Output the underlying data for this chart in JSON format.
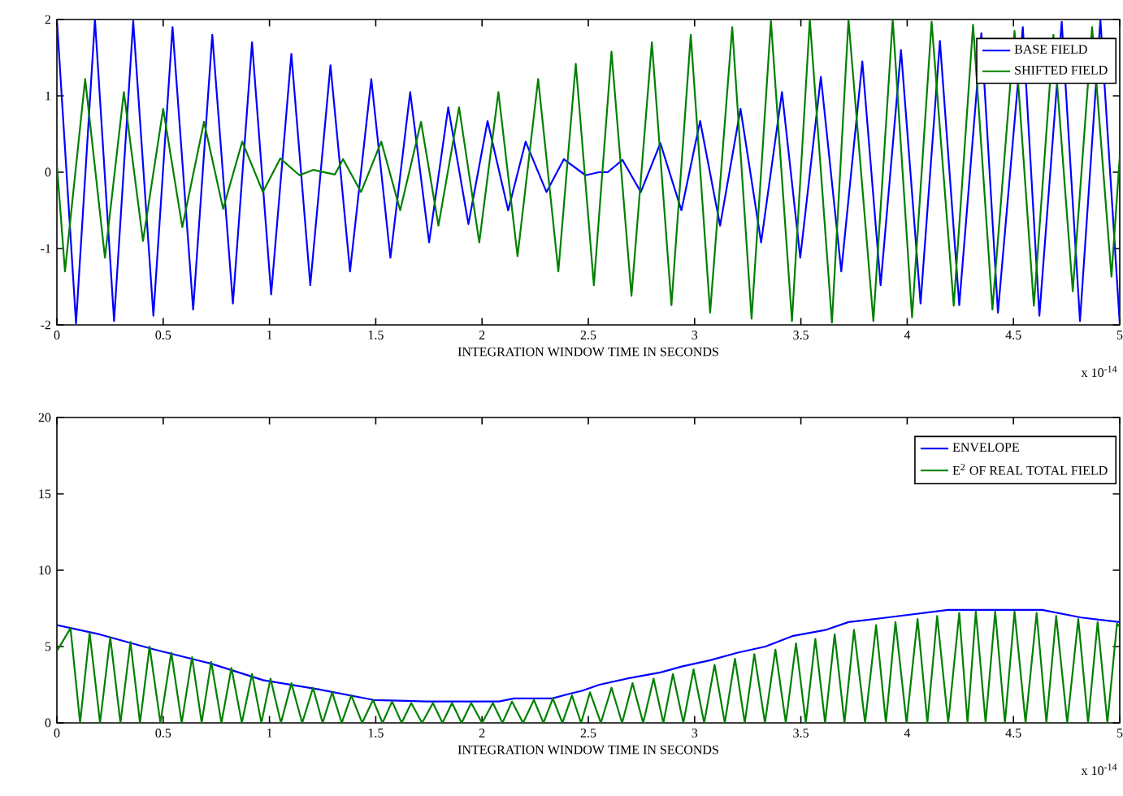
{
  "chart_data": [
    {
      "type": "line",
      "xlabel": "INTEGRATION WINDOW TIME IN SECONDS",
      "annotations": [
        "x 10$^{-14}$"
      ],
      "xlim": [
        0,
        5
      ],
      "ylim": [
        -2,
        2
      ],
      "xticks": [
        0,
        0.5,
        1,
        1.5,
        2,
        2.5,
        3,
        3.5,
        4,
        4.5,
        5
      ],
      "yticks": [
        -2,
        -1,
        0,
        1,
        2
      ],
      "legend": "top right",
      "grid": false,
      "series": [
        {
          "name": "BASE FIELD",
          "color": "#0000ff",
          "x": [
            0,
            0.09,
            0.179,
            0.269,
            0.359,
            0.454,
            0.544,
            0.641,
            0.731,
            0.828,
            0.918,
            1.008,
            1.103,
            1.192,
            1.287,
            1.379,
            1.479,
            1.569,
            1.662,
            1.751,
            1.841,
            1.936,
            2.026,
            2.123,
            2.205,
            2.303,
            2.385,
            2.487,
            2.55,
            2.591,
            2.661,
            2.747,
            2.839,
            2.938,
            3.026,
            3.12,
            3.216,
            3.313,
            3.411,
            3.497,
            3.594,
            3.69,
            3.789,
            3.875,
            3.971,
            4.063,
            4.154,
            4.245,
            4.349,
            4.427,
            4.544,
            4.622,
            4.727,
            4.813,
            4.909,
            5.0
          ],
          "values": [
            2.0,
            -1.98,
            2.0,
            -1.95,
            1.98,
            -1.88,
            1.9,
            -1.8,
            1.8,
            -1.72,
            1.7,
            -1.6,
            1.55,
            -1.48,
            1.4,
            -1.3,
            1.22,
            -1.12,
            1.05,
            -0.92,
            0.85,
            -0.68,
            0.67,
            -0.5,
            0.4,
            -0.26,
            0.17,
            -0.04,
            0.0,
            0.0,
            0.16,
            -0.26,
            0.38,
            -0.5,
            0.67,
            -0.7,
            0.83,
            -0.92,
            1.05,
            -1.12,
            1.25,
            -1.3,
            1.45,
            -1.48,
            1.6,
            -1.72,
            1.72,
            -1.74,
            1.82,
            -1.84,
            1.9,
            -1.88,
            1.97,
            -1.95,
            2.0,
            -1.98
          ]
        },
        {
          "name": "SHIFTED FIELD",
          "color": "#008000",
          "x": [
            0,
            0.038,
            0.133,
            0.226,
            0.315,
            0.405,
            0.5,
            0.59,
            0.692,
            0.782,
            0.872,
            0.969,
            1.051,
            1.141,
            1.205,
            1.308,
            1.346,
            1.431,
            1.526,
            1.615,
            1.713,
            1.795,
            1.892,
            1.987,
            2.077,
            2.167,
            2.264,
            2.359,
            2.441,
            2.526,
            2.609,
            2.703,
            2.799,
            2.891,
            2.982,
            3.073,
            3.177,
            3.268,
            3.359,
            3.458,
            3.542,
            3.646,
            3.724,
            3.841,
            3.932,
            4.023,
            4.115,
            4.219,
            4.31,
            4.401,
            4.505,
            4.596,
            4.688,
            4.779,
            4.87,
            4.961,
            5.0
          ],
          "values": [
            0.1,
            -1.3,
            1.22,
            -1.12,
            1.05,
            -0.9,
            0.83,
            -0.72,
            0.66,
            -0.48,
            0.4,
            -0.26,
            0.18,
            -0.04,
            0.03,
            -0.03,
            0.17,
            -0.26,
            0.4,
            -0.5,
            0.66,
            -0.7,
            0.85,
            -0.92,
            1.05,
            -1.1,
            1.22,
            -1.3,
            1.42,
            -1.48,
            1.58,
            -1.62,
            1.7,
            -1.74,
            1.8,
            -1.84,
            1.9,
            -1.92,
            1.98,
            -1.95,
            2.0,
            -1.97,
            2.0,
            -1.95,
            2.0,
            -1.9,
            1.97,
            -1.75,
            1.93,
            -1.8,
            1.85,
            -1.75,
            1.8,
            -1.56,
            1.9,
            -1.37,
            0.2
          ]
        }
      ]
    },
    {
      "type": "line",
      "xlabel": "INTEGRATION WINDOW TIME IN SECONDS",
      "annotations": [
        "x 10$^{-14}$"
      ],
      "xlim": [
        0,
        5
      ],
      "ylim": [
        0,
        20
      ],
      "xticks": [
        0,
        0.5,
        1,
        1.5,
        2,
        2.5,
        3,
        3.5,
        4,
        4.5,
        5
      ],
      "yticks": [
        0,
        5,
        10,
        15,
        20
      ],
      "legend": "top right",
      "grid": false,
      "series": [
        {
          "name": "ENVELOPE",
          "color": "#0000ff",
          "x": [
            0,
            0.2,
            0.46,
            0.72,
            0.97,
            1.23,
            1.49,
            1.74,
            2.08,
            2.15,
            2.33,
            2.41,
            2.47,
            2.552,
            2.682,
            2.839,
            2.943,
            3.073,
            3.203,
            3.333,
            3.464,
            3.62,
            3.724,
            3.906,
            4.193,
            4.635,
            4.818,
            5.0
          ],
          "values": [
            6.4,
            5.8,
            4.8,
            3.9,
            2.8,
            2.2,
            1.5,
            1.4,
            1.4,
            1.6,
            1.6,
            1.9,
            2.1,
            2.5,
            2.9,
            3.3,
            3.7,
            4.1,
            4.6,
            5.0,
            5.7,
            6.1,
            6.6,
            6.9,
            7.4,
            7.4,
            6.9,
            6.6
          ]
        },
        {
          "name": "E$^{2}$ OF REAL TOTAL FIELD",
          "color": "#008000",
          "x": [
            0,
            0.064,
            0.109,
            0.154,
            0.203,
            0.251,
            0.299,
            0.346,
            0.391,
            0.436,
            0.487,
            0.538,
            0.587,
            0.636,
            0.681,
            0.726,
            0.774,
            0.821,
            0.87,
            0.918,
            0.962,
            1.005,
            1.054,
            1.103,
            1.154,
            1.205,
            1.25,
            1.295,
            1.34,
            1.385,
            1.436,
            1.487,
            1.532,
            1.577,
            1.622,
            1.667,
            1.718,
            1.769,
            1.814,
            1.859,
            1.904,
            1.949,
            2.0,
            2.051,
            2.096,
            2.141,
            2.193,
            2.244,
            2.289,
            2.333,
            2.378,
            2.423,
            2.466,
            2.508,
            2.559,
            2.609,
            2.659,
            2.708,
            2.758,
            2.807,
            2.853,
            2.898,
            2.947,
            2.995,
            3.045,
            3.094,
            3.142,
            3.19,
            3.236,
            3.281,
            3.331,
            3.38,
            3.429,
            3.477,
            3.523,
            3.568,
            3.614,
            3.659,
            3.705,
            3.75,
            3.802,
            3.854,
            3.9,
            3.945,
            3.997,
            4.049,
            4.095,
            4.141,
            4.193,
            4.245,
            4.284,
            4.323,
            4.369,
            4.414,
            4.46,
            4.505,
            4.557,
            4.609,
            4.655,
            4.701,
            4.753,
            4.805,
            4.851,
            4.896,
            4.942,
            4.987,
            5.0
          ],
          "values": [
            4.7,
            6.2,
            0,
            5.9,
            0,
            5.6,
            0,
            5.3,
            0,
            5.0,
            0,
            4.6,
            0,
            4.3,
            0,
            4.0,
            0,
            3.6,
            0,
            3.2,
            0,
            2.9,
            0,
            2.6,
            0,
            2.3,
            0,
            2.0,
            0,
            1.8,
            0,
            1.5,
            0,
            1.4,
            0,
            1.3,
            0,
            1.3,
            0,
            1.3,
            0,
            1.3,
            0,
            1.3,
            0,
            1.4,
            0,
            1.5,
            0,
            1.6,
            0,
            1.8,
            0,
            2.0,
            0,
            2.3,
            0,
            2.6,
            0,
            2.9,
            0,
            3.2,
            0,
            3.5,
            0,
            3.8,
            0,
            4.2,
            0,
            4.5,
            0,
            4.8,
            0,
            5.2,
            0,
            5.5,
            0,
            5.8,
            0,
            6.1,
            0,
            6.4,
            0,
            6.6,
            0,
            6.8,
            0,
            7.0,
            0,
            7.2,
            0,
            7.3,
            0,
            7.3,
            0,
            7.3,
            0,
            7.2,
            0,
            7.0,
            0,
            6.8,
            0,
            6.6,
            0,
            6.5,
            6.3
          ]
        }
      ]
    }
  ]
}
